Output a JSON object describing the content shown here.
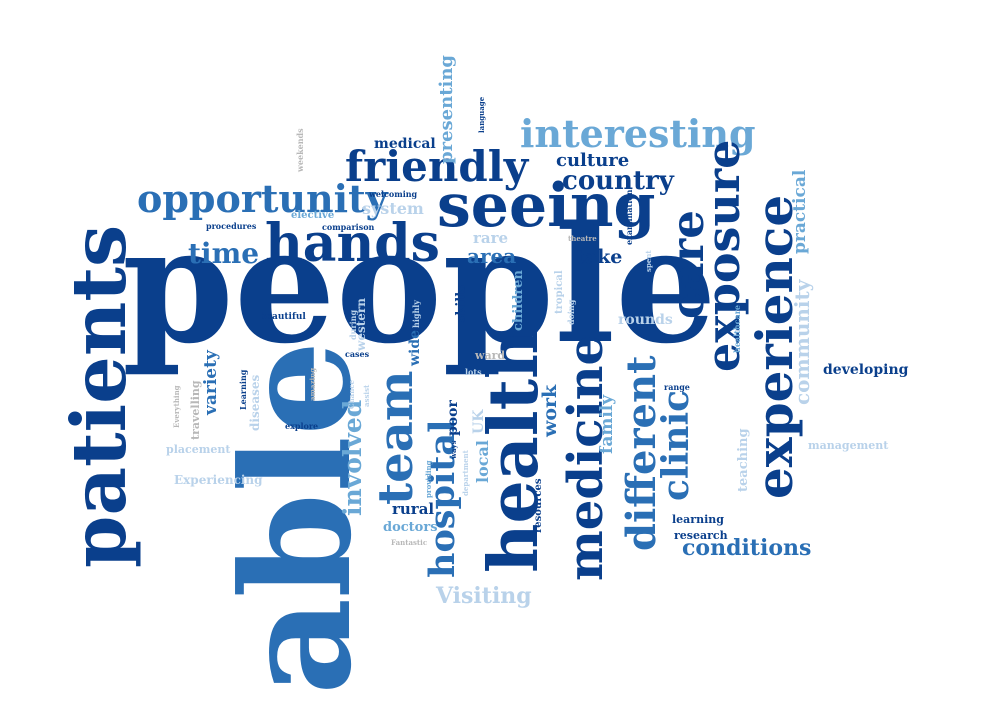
{
  "palette": {
    "dark": "#0a3f8c",
    "mid": "#2a6fb5",
    "light": "#6aa8d6",
    "pale": "#b9d2ea",
    "gray": "#b8b8b8"
  },
  "words": [
    {
      "text": "people",
      "tone": "dark"
    },
    {
      "text": "able",
      "tone": "mid"
    },
    {
      "text": "patients",
      "tone": "dark"
    },
    {
      "text": "health",
      "tone": "dark"
    },
    {
      "text": "seeing",
      "tone": "dark"
    },
    {
      "text": "hands",
      "tone": "dark"
    },
    {
      "text": "interesting",
      "tone": "light"
    },
    {
      "text": "experience",
      "tone": "dark"
    },
    {
      "text": "exposure",
      "tone": "dark"
    },
    {
      "text": "care",
      "tone": "dark"
    },
    {
      "text": "medicine",
      "tone": "dark"
    },
    {
      "text": "team",
      "tone": "mid"
    },
    {
      "text": "friendly",
      "tone": "dark"
    },
    {
      "text": "opportunity",
      "tone": "mid"
    },
    {
      "text": "different",
      "tone": "mid"
    },
    {
      "text": "hospital",
      "tone": "mid"
    },
    {
      "text": "clinic",
      "tone": "mid"
    },
    {
      "text": "country",
      "tone": "dark"
    },
    {
      "text": "time",
      "tone": "mid"
    },
    {
      "text": "community",
      "tone": "pale"
    },
    {
      "text": "involved",
      "tone": "light"
    },
    {
      "text": "conditions",
      "tone": "mid"
    },
    {
      "text": "culture",
      "tone": "dark"
    },
    {
      "text": "Visiting",
      "tone": "pale"
    },
    {
      "text": "area",
      "tone": "mid"
    },
    {
      "text": "take",
      "tone": "dark"
    },
    {
      "text": "practical",
      "tone": "light"
    },
    {
      "text": "work",
      "tone": "mid"
    },
    {
      "text": "family",
      "tone": "light"
    },
    {
      "text": "local",
      "tone": "light"
    },
    {
      "text": "presenting",
      "tone": "light"
    },
    {
      "text": "variety",
      "tone": "mid"
    },
    {
      "text": "medical",
      "tone": "dark"
    },
    {
      "text": "system",
      "tone": "pale"
    },
    {
      "text": "developing",
      "tone": "dark"
    },
    {
      "text": "rural",
      "tone": "dark"
    },
    {
      "text": "rare",
      "tone": "pale"
    },
    {
      "text": "wide",
      "tone": "mid"
    },
    {
      "text": "poor",
      "tone": "dark"
    },
    {
      "text": "UK",
      "tone": "pale"
    },
    {
      "text": "skills",
      "tone": "dark"
    },
    {
      "text": "rounds",
      "tone": "pale"
    },
    {
      "text": "doctors",
      "tone": "light"
    },
    {
      "text": "teaching",
      "tone": "pale"
    },
    {
      "text": "learning",
      "tone": "dark"
    },
    {
      "text": "children",
      "tone": "light"
    },
    {
      "text": "management",
      "tone": "pale"
    },
    {
      "text": "Experiencing",
      "tone": "pale"
    },
    {
      "text": "diseases",
      "tone": "pale"
    },
    {
      "text": "western",
      "tone": "pale"
    },
    {
      "text": "travelling",
      "tone": "gray"
    },
    {
      "text": "placement",
      "tone": "pale"
    },
    {
      "text": "resources",
      "tone": "dark"
    },
    {
      "text": "ward",
      "tone": "gray"
    },
    {
      "text": "research",
      "tone": "dark"
    },
    {
      "text": "tropical",
      "tone": "pale"
    },
    {
      "text": "elective",
      "tone": "light"
    },
    {
      "text": "welcoming",
      "tone": "dark"
    },
    {
      "text": "comparison",
      "tone": "dark"
    },
    {
      "text": "procedures",
      "tone": "dark"
    },
    {
      "text": "beautiful",
      "tone": "dark"
    },
    {
      "text": "cases",
      "tone": "dark"
    },
    {
      "text": "explore",
      "tone": "dark"
    },
    {
      "text": "range",
      "tone": "dark"
    },
    {
      "text": "lots",
      "tone": "pale"
    },
    {
      "text": "during",
      "tone": "pale"
    },
    {
      "text": "highly",
      "tone": "pale"
    },
    {
      "text": "doing",
      "tone": "pale"
    },
    {
      "text": "spent",
      "tone": "pale"
    },
    {
      "text": "theatre",
      "tone": "gray"
    },
    {
      "text": "healthcare",
      "tone": "light"
    },
    {
      "text": "examination",
      "tone": "dark"
    },
    {
      "text": "language",
      "tone": "dark"
    },
    {
      "text": "weekends",
      "tone": "gray"
    },
    {
      "text": "Learning",
      "tone": "dark"
    },
    {
      "text": "amazing",
      "tone": "gray"
    },
    {
      "text": "Everything",
      "tone": "gray"
    },
    {
      "text": "Chance",
      "tone": "pale"
    },
    {
      "text": "assist",
      "tone": "pale"
    },
    {
      "text": "ways",
      "tone": "dark"
    },
    {
      "text": "providing",
      "tone": "light"
    },
    {
      "text": "department",
      "tone": "pale"
    },
    {
      "text": "Fantastic",
      "tone": "gray"
    }
  ]
}
